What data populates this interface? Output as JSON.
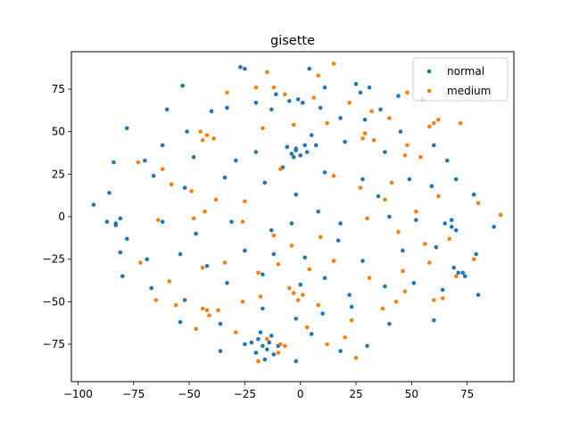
{
  "chart_data": {
    "type": "scatter",
    "title": "gisette",
    "xlabel": "",
    "ylabel": "",
    "xlim": [
      -103,
      96
    ],
    "ylim": [
      -97,
      97
    ],
    "xticks": [
      -100,
      -75,
      -50,
      -25,
      0,
      25,
      50,
      75
    ],
    "yticks": [
      -75,
      -50,
      -25,
      0,
      25,
      50,
      75
    ],
    "grid": false,
    "legend_position": "upper right",
    "series": [
      {
        "name": "normal",
        "color": "#1f77b4",
        "points": [
          [
            -27,
            88
          ],
          [
            -25,
            87
          ],
          [
            -20,
            67
          ],
          [
            4,
            87
          ],
          [
            11,
            76
          ],
          [
            25,
            78
          ],
          [
            31,
            76
          ],
          [
            -53,
            77
          ],
          [
            -11,
            72
          ],
          [
            -5,
            68
          ],
          [
            -1,
            69
          ],
          [
            9,
            64
          ],
          [
            27,
            73
          ],
          [
            -40,
            62
          ],
          [
            -60,
            63
          ],
          [
            -78,
            52
          ],
          [
            -51,
            50
          ],
          [
            -33,
            64
          ],
          [
            -13,
            63
          ],
          [
            1,
            67
          ],
          [
            5,
            48
          ],
          [
            18,
            58
          ],
          [
            29,
            57
          ],
          [
            36,
            63
          ],
          [
            44,
            71
          ],
          [
            55,
            69
          ],
          [
            -70,
            33
          ],
          [
            -84,
            32
          ],
          [
            -62,
            42
          ],
          [
            -48,
            35
          ],
          [
            -29,
            33
          ],
          [
            -20,
            38
          ],
          [
            -8,
            29
          ],
          [
            -2,
            39
          ],
          [
            -3,
            35
          ],
          [
            7,
            42
          ],
          [
            20,
            44
          ],
          [
            38,
            38
          ],
          [
            45,
            50
          ],
          [
            60,
            42
          ],
          [
            66,
            33
          ],
          [
            70,
            22
          ],
          [
            -93,
            7
          ],
          [
            -86,
            14
          ],
          [
            -66,
            24
          ],
          [
            -52,
            17
          ],
          [
            -34,
            23
          ],
          [
            -16,
            20
          ],
          [
            -2,
            13
          ],
          [
            11,
            26
          ],
          [
            28,
            22
          ],
          [
            35,
            12
          ],
          [
            49,
            22
          ],
          [
            59,
            18
          ],
          [
            78,
            13
          ],
          [
            87,
            -6
          ],
          [
            -83,
            -4
          ],
          [
            -78,
            -13
          ],
          [
            -62,
            -3
          ],
          [
            -47,
            -10
          ],
          [
            -31,
            -3
          ],
          [
            -13,
            -8
          ],
          [
            -4,
            -4
          ],
          [
            8,
            3
          ],
          [
            18,
            -4
          ],
          [
            40,
            0
          ],
          [
            52,
            -2
          ],
          [
            68,
            -6
          ],
          [
            79,
            -22
          ],
          [
            -81,
            -21
          ],
          [
            -69,
            -25
          ],
          [
            -54,
            -22
          ],
          [
            -42,
            -29
          ],
          [
            -25,
            -20
          ],
          [
            -12,
            -22
          ],
          [
            2,
            -24
          ],
          [
            17,
            -14
          ],
          [
            28,
            -26
          ],
          [
            46,
            -20
          ],
          [
            61,
            -18
          ],
          [
            73,
            -33
          ],
          [
            -80,
            -35
          ],
          [
            -67,
            -42
          ],
          [
            -52,
            -49
          ],
          [
            -33,
            -39
          ],
          [
            -17,
            -34
          ],
          [
            0,
            -40
          ],
          [
            11,
            -36
          ],
          [
            22,
            -46
          ],
          [
            38,
            -41
          ],
          [
            51,
            -39
          ],
          [
            64,
            -43
          ],
          [
            80,
            -46
          ],
          [
            -54,
            -62
          ],
          [
            -36,
            -63
          ],
          [
            -17,
            -54
          ],
          [
            -2,
            -60
          ],
          [
            10,
            -57
          ],
          [
            23,
            -53
          ],
          [
            40,
            -63
          ],
          [
            60,
            -61
          ],
          [
            -36,
            -79
          ],
          [
            -17,
            -76
          ],
          [
            -14,
            -74
          ],
          [
            5,
            -69
          ],
          [
            18,
            -79
          ],
          [
            30,
            -76
          ],
          [
            -2,
            -85
          ],
          [
            -20,
            -80
          ],
          [
            -15,
            -78
          ],
          [
            -19,
            -72
          ],
          [
            -12,
            -81
          ],
          [
            -22,
            -74
          ],
          [
            -13,
            -70
          ],
          [
            -16,
            -84
          ],
          [
            -25,
            -75
          ],
          [
            -10,
            -76
          ],
          [
            -18,
            -68
          ],
          [
            -2,
            40
          ],
          [
            2,
            42
          ],
          [
            -4,
            37
          ],
          [
            0,
            36
          ],
          [
            3,
            38
          ],
          [
            -6,
            41
          ],
          [
            65,
            -4
          ],
          [
            70,
            -8
          ],
          [
            68,
            -2
          ],
          [
            71,
            -33
          ],
          [
            74,
            -35
          ],
          [
            69,
            -30
          ],
          [
            -83,
            -5
          ],
          [
            -87,
            -3
          ],
          [
            -81,
            -1
          ]
        ]
      },
      {
        "name": "medium",
        "color": "#ff7f0e",
        "points": [
          [
            -15,
            85
          ],
          [
            8,
            83
          ],
          [
            15,
            90
          ],
          [
            -33,
            73
          ],
          [
            -20,
            76
          ],
          [
            -12,
            76
          ],
          [
            -7,
            72
          ],
          [
            6,
            70
          ],
          [
            22,
            67
          ],
          [
            32,
            62
          ],
          [
            48,
            73
          ],
          [
            60,
            55
          ],
          [
            72,
            55
          ],
          [
            -42,
            48
          ],
          [
            -45,
            50
          ],
          [
            -39,
            46
          ],
          [
            -44,
            45
          ],
          [
            -17,
            52
          ],
          [
            -3,
            54
          ],
          [
            12,
            55
          ],
          [
            28,
            46
          ],
          [
            40,
            58
          ],
          [
            48,
            42
          ],
          [
            54,
            35
          ],
          [
            41,
            20
          ],
          [
            -73,
            32
          ],
          [
            -62,
            28
          ],
          [
            -58,
            19
          ],
          [
            -49,
            15
          ],
          [
            -38,
            10
          ],
          [
            -25,
            9
          ],
          [
            -9,
            28
          ],
          [
            15,
            24
          ],
          [
            27,
            17
          ],
          [
            38,
            10
          ],
          [
            52,
            3
          ],
          [
            62,
            12
          ],
          [
            80,
            8
          ],
          [
            90,
            1
          ],
          [
            -64,
            -2
          ],
          [
            -48,
            -1
          ],
          [
            -43,
            3
          ],
          [
            -26,
            -3
          ],
          [
            -12,
            -11
          ],
          [
            -4,
            -17
          ],
          [
            9,
            -12
          ],
          [
            30,
            -1
          ],
          [
            44,
            -9
          ],
          [
            56,
            -16
          ],
          [
            67,
            -13
          ],
          [
            78,
            -25
          ],
          [
            -72,
            -27
          ],
          [
            -59,
            -38
          ],
          [
            -44,
            -30
          ],
          [
            -34,
            -27
          ],
          [
            -19,
            -33
          ],
          [
            -10,
            -28
          ],
          [
            4,
            -31
          ],
          [
            15,
            -26
          ],
          [
            31,
            -36
          ],
          [
            46,
            -32
          ],
          [
            58,
            -27
          ],
          [
            70,
            -35
          ],
          [
            -65,
            -49
          ],
          [
            -56,
            -52
          ],
          [
            -42,
            -55
          ],
          [
            -26,
            -50
          ],
          [
            -18,
            -47
          ],
          [
            -3,
            -45
          ],
          [
            -1,
            -49
          ],
          [
            -5,
            -42
          ],
          [
            1,
            -46
          ],
          [
            8,
            -52
          ],
          [
            23,
            -61
          ],
          [
            37,
            -54
          ],
          [
            47,
            -44
          ],
          [
            60,
            -49
          ],
          [
            -47,
            -66
          ],
          [
            -29,
            -68
          ],
          [
            -15,
            -72
          ],
          [
            -10,
            -80
          ],
          [
            -7,
            -76
          ],
          [
            3,
            -65
          ],
          [
            20,
            -71
          ],
          [
            25,
            -83
          ],
          [
            12,
            -75
          ],
          [
            -41,
            -58
          ],
          [
            -37,
            -55
          ],
          [
            -44,
            -54
          ],
          [
            -9,
            -75
          ],
          [
            -19,
            -85
          ],
          [
            29,
            49
          ],
          [
            33,
            45
          ],
          [
            62,
            57
          ],
          [
            58,
            53
          ],
          [
            47,
            36
          ],
          [
            64,
            -48
          ],
          [
            43,
            -50
          ]
        ]
      }
    ]
  }
}
